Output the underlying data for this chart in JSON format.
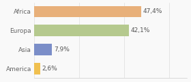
{
  "categories": [
    "America",
    "Asia",
    "Europa",
    "Africa"
  ],
  "values": [
    2.6,
    7.9,
    42.1,
    47.4
  ],
  "labels": [
    "2,6%",
    "7,9%",
    "42,1%",
    "47,4%"
  ],
  "bar_colors": [
    "#f0c050",
    "#7b8ec8",
    "#b5c98e",
    "#e8b07a"
  ],
  "xlim": [
    0,
    68
  ],
  "background_color": "#f9f9f9",
  "label_fontsize": 6.5,
  "tick_fontsize": 6.5
}
